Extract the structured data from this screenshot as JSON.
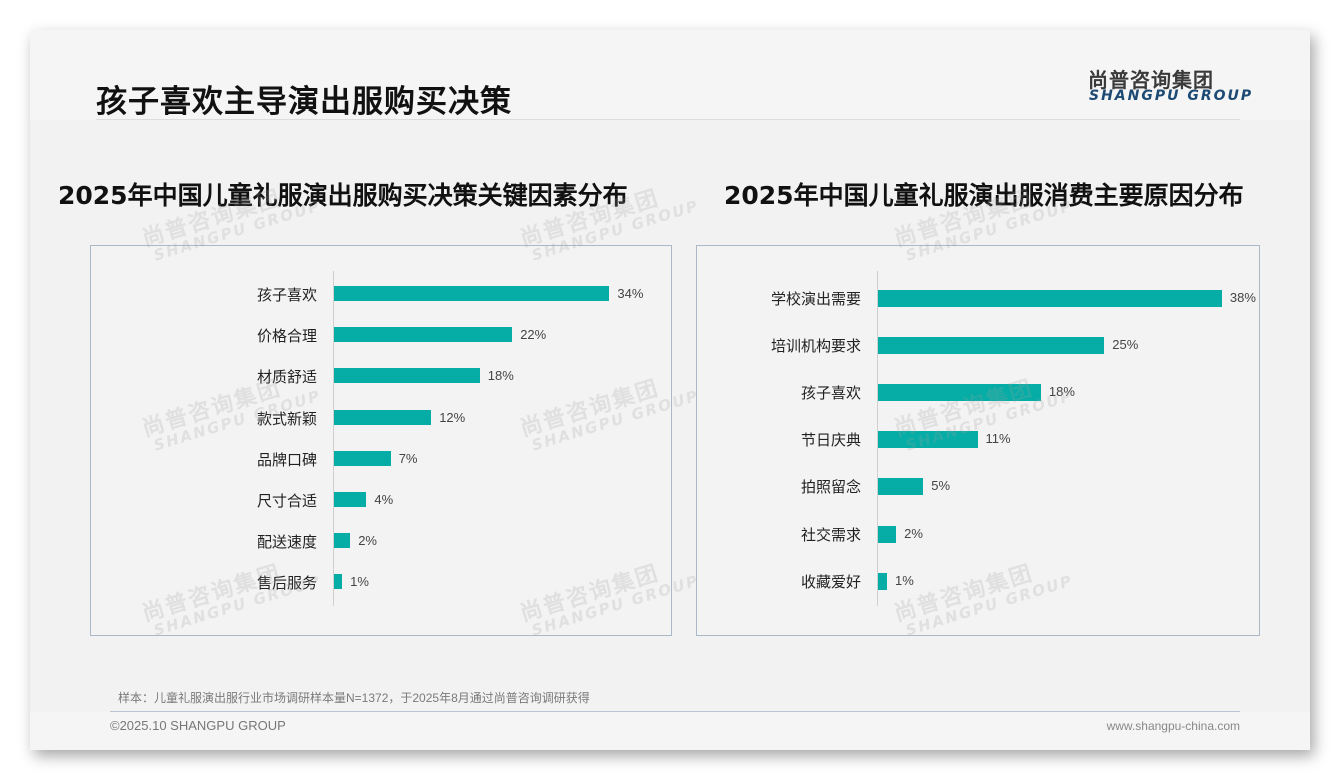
{
  "page": {
    "title": "孩子喜欢主导演出服购买决策",
    "logo_cn": "尚普咨询集团",
    "logo_en": "SHANGPU GROUP",
    "watermark_cn": "尚普咨询集团",
    "watermark_en": "SHANGPU GROUP",
    "note": "样本：儿童礼服演出服行业市场调研样本量N=1372，于2025年8月通过尚普咨询调研获得",
    "copyright": "©2025.10 SHANGPU GROUP",
    "website": "www.shangpu-china.com",
    "bar_color": "#05ada6"
  },
  "chart_data": [
    {
      "type": "bar",
      "orientation": "horizontal",
      "title": "2025年中国儿童礼服演出服购买决策关键因素分布",
      "categories": [
        "孩子喜欢",
        "价格合理",
        "材质舒适",
        "款式新颖",
        "品牌口碑",
        "尺寸合适",
        "配送速度",
        "售后服务"
      ],
      "values": [
        34,
        22,
        18,
        12,
        7,
        4,
        2,
        1
      ],
      "value_labels": [
        "34%",
        "22%",
        "18%",
        "12%",
        "7%",
        "4%",
        "2%",
        "1%"
      ],
      "unit": "%",
      "xlabel": "",
      "ylabel": "",
      "grid": false,
      "legend": null
    },
    {
      "type": "bar",
      "orientation": "horizontal",
      "title": "2025年中国儿童礼服演出服消费主要原因分布",
      "categories": [
        "学校演出需要",
        "培训机构要求",
        "孩子喜欢",
        "节日庆典",
        "拍照留念",
        "社交需求",
        "收藏爱好"
      ],
      "values": [
        38,
        25,
        18,
        11,
        5,
        2,
        1
      ],
      "value_labels": [
        "38%",
        "25%",
        "18%",
        "11%",
        "5%",
        "2%",
        "1%"
      ],
      "unit": "%",
      "xlabel": "",
      "ylabel": "",
      "grid": false,
      "legend": null
    }
  ]
}
